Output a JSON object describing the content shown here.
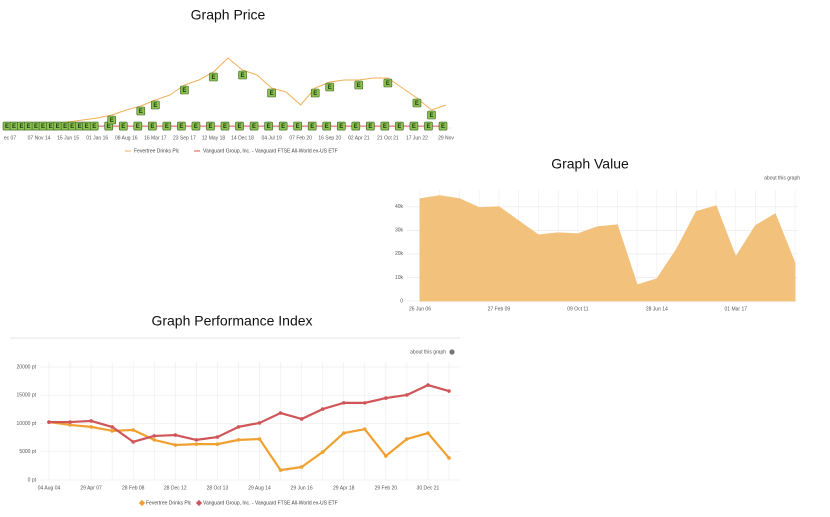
{
  "chart_data": [
    {
      "type": "line",
      "title": "Graph Price",
      "event_marker": "E",
      "categories": [
        "ec 07",
        null,
        "07 Nov 14",
        null,
        "15 Jun 15",
        null,
        "01 Jan 16",
        null,
        "08 Aug 16",
        null,
        "16 Mar 17",
        null,
        "23 Sep 17",
        null,
        "12 May 18",
        null,
        "14 Dec 18",
        null,
        "04 Jul 19",
        null,
        "07 Feb 20",
        null,
        "16 Sep 20",
        null,
        "02 Apr 21",
        null,
        "21 Oct 21",
        null,
        "17 Jun 22",
        null,
        "29 Nov"
      ],
      "series": [
        {
          "name": "Fevertree Drinks Plc",
          "color": "#f0b057",
          "values": [
            156,
            156,
            156,
            208,
            312,
            417,
            521,
            677,
            938,
            1146,
            1458,
            1719,
            2240,
            2500,
            2917,
            3646,
            3021,
            2760,
            2083,
            1875,
            1198,
            2083,
            2396,
            2500,
            2500,
            2604,
            2604,
            2083,
            1563,
            938,
            1198
          ]
        },
        {
          "name": "Vanguard Group, Inc. - Vanguard FTSE All-World ex-US ETF",
          "color": "#d9534f",
          "values": [
            100,
            100,
            100,
            100,
            100,
            100,
            100,
            100,
            100,
            100,
            100,
            100,
            100,
            100,
            100,
            100,
            100,
            100,
            100,
            100,
            100,
            100,
            100,
            100,
            100,
            100,
            100,
            100,
            100,
            100,
            100
          ]
        }
      ],
      "ylim": [
        0,
        5000
      ]
    },
    {
      "type": "area",
      "title": "Graph Value",
      "link": "about this graph",
      "categories": [
        "26 Jun 06",
        null,
        null,
        null,
        "27 Feb 09",
        null,
        null,
        null,
        "09 Oct 11",
        null,
        null,
        null,
        "28 Jun 14",
        null,
        null,
        null,
        "01 Mar 17",
        null,
        null,
        null
      ],
      "values": [
        43400,
        44700,
        43400,
        39600,
        40000,
        34000,
        28000,
        28900,
        28500,
        31500,
        32300,
        6800,
        9400,
        22000,
        38000,
        40400,
        18700,
        32000,
        37000,
        16000
      ],
      "color": "#f2c27d",
      "ylim": [
        0,
        45000
      ],
      "yticks": [
        0,
        {
          "value": 10000,
          "label": "10k"
        },
        {
          "value": 20000,
          "label": "20k"
        },
        {
          "value": 30000,
          "label": "30k"
        },
        {
          "value": 40000,
          "label": "40k"
        }
      ]
    },
    {
      "type": "line",
      "title": "Graph Performance Index",
      "link": "about this graph",
      "categories": [
        "04 Aug 04",
        null,
        "29 Apr 07",
        null,
        "28 Feb 08",
        null,
        "28 Dec 12",
        null,
        "28 Oct 13",
        null,
        "29 Aug 14",
        null,
        "29 Jun 16",
        null,
        "29 Apr 18",
        null,
        "29 Feb 20",
        null,
        "30 Dec 21",
        null
      ],
      "series": [
        {
          "name": "Fevertree Drinks Plc",
          "color": "#f0a030",
          "values": [
            10250,
            9750,
            9400,
            8700,
            8850,
            7100,
            6200,
            6350,
            6350,
            7100,
            7250,
            1750,
            2300,
            4950,
            8300,
            9000,
            4250,
            7250,
            8300,
            3900
          ]
        },
        {
          "name": "Vanguard Group, Inc. - Vanguard FTSE All-World ex-US ETF",
          "color": "#d05558",
          "values": [
            10250,
            10250,
            10450,
            9400,
            6750,
            7800,
            7950,
            7100,
            7600,
            9400,
            10100,
            11850,
            10800,
            12550,
            13650,
            13650,
            14500,
            15050,
            16800,
            15750
          ]
        }
      ],
      "ylim": [
        0,
        20000
      ],
      "yticks": [
        {
          "value": 0,
          "label": "0 pt"
        },
        {
          "value": 5000,
          "label": "5000 pt"
        },
        {
          "value": 10000,
          "label": "10000 pt"
        },
        {
          "value": 15000,
          "label": "15000 pt"
        },
        {
          "value": 20000,
          "label": "20000 pt"
        }
      ]
    }
  ]
}
